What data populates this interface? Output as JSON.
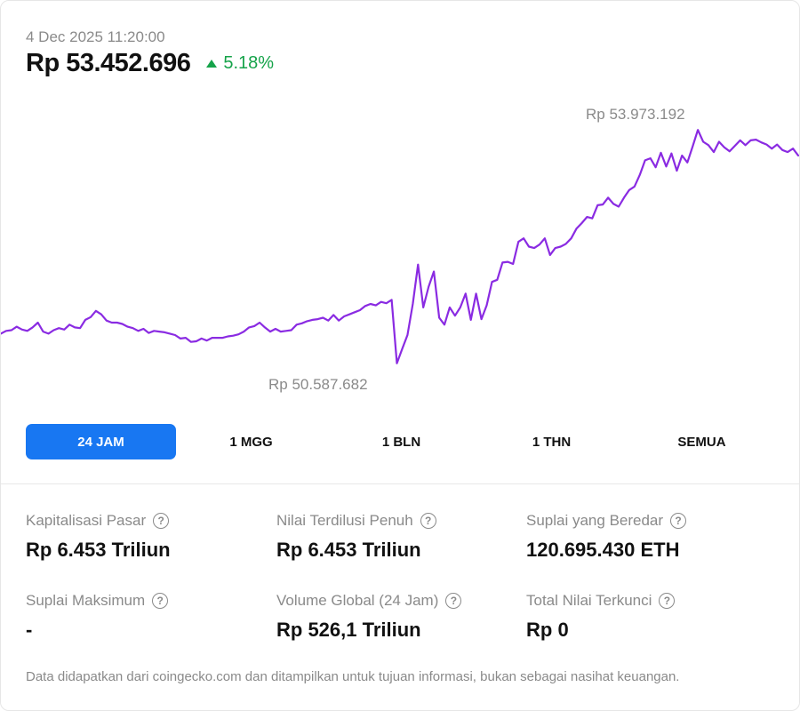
{
  "header": {
    "timestamp": "4 Dec 2025 11:20:00",
    "price": "Rp 53.452.696",
    "change": "5.18%",
    "change_color": "#16a34a"
  },
  "chart_data": {
    "type": "line",
    "line_color": "#8a2be2",
    "high_label": "Rp 53.973.192",
    "low_label": "Rp 50.587.682",
    "y_unit": "IDR",
    "ylim": [
      50550000,
      54100000
    ],
    "values": [
      51020000,
      51060000,
      51070000,
      51120000,
      51080000,
      51060000,
      51110000,
      51180000,
      51050000,
      51020000,
      51070000,
      51100000,
      51080000,
      51150000,
      51110000,
      51100000,
      51220000,
      51260000,
      51350000,
      51300000,
      51210000,
      51180000,
      51180000,
      51160000,
      51120000,
      51100000,
      51060000,
      51090000,
      51030000,
      51060000,
      51050000,
      51040000,
      51020000,
      51000000,
      50950000,
      50960000,
      50900000,
      50910000,
      50950000,
      50920000,
      50960000,
      50960000,
      50960000,
      50980000,
      50990000,
      51010000,
      51050000,
      51110000,
      51130000,
      51180000,
      51110000,
      51050000,
      51090000,
      51050000,
      51060000,
      51070000,
      51150000,
      51170000,
      51200000,
      51220000,
      51230000,
      51250000,
      51210000,
      51290000,
      51210000,
      51270000,
      51300000,
      51330000,
      51360000,
      51420000,
      51450000,
      51430000,
      51480000,
      51460000,
      51510000,
      50590000,
      50800000,
      51000000,
      51450000,
      52020000,
      51400000,
      51700000,
      51920000,
      51250000,
      51150000,
      51400000,
      51280000,
      51400000,
      51600000,
      51220000,
      51600000,
      51230000,
      51430000,
      51770000,
      51800000,
      52050000,
      52060000,
      52030000,
      52350000,
      52400000,
      52280000,
      52260000,
      52310000,
      52400000,
      52160000,
      52260000,
      52280000,
      52320000,
      52400000,
      52540000,
      52620000,
      52710000,
      52690000,
      52880000,
      52890000,
      52990000,
      52900000,
      52860000,
      52990000,
      53100000,
      53150000,
      53320000,
      53530000,
      53560000,
      53430000,
      53640000,
      53440000,
      53630000,
      53380000,
      53600000,
      53500000,
      53730000,
      53970000,
      53800000,
      53750000,
      53650000,
      53800000,
      53720000,
      53660000,
      53740000,
      53820000,
      53750000,
      53820000,
      53830000,
      53790000,
      53760000,
      53700000,
      53760000,
      53680000,
      53650000,
      53700000,
      53600000
    ]
  },
  "tabs": [
    {
      "label": "24 JAM",
      "active": true
    },
    {
      "label": "1 MGG",
      "active": false
    },
    {
      "label": "1 BLN",
      "active": false
    },
    {
      "label": "1 THN",
      "active": false
    },
    {
      "label": "SEMUA",
      "active": false
    }
  ],
  "stats": [
    {
      "label": "Kapitalisasi Pasar",
      "value": "Rp 6.453 Triliun"
    },
    {
      "label": "Nilai Terdilusi Penuh",
      "value": "Rp 6.453 Triliun"
    },
    {
      "label": "Suplai yang Beredar",
      "value": "120.695.430 ETH"
    },
    {
      "label": "Suplai Maksimum",
      "value": "-"
    },
    {
      "label": "Volume Global (24 Jam)",
      "value": "Rp 526,1 Triliun"
    },
    {
      "label": "Total Nilai Terkunci",
      "value": "Rp 0"
    }
  ],
  "help_glyph": "?",
  "disclaimer": "Data didapatkan dari coingecko.com dan ditampilkan untuk tujuan informasi, bukan sebagai nasihat keuangan."
}
